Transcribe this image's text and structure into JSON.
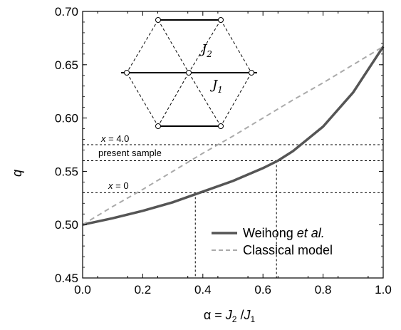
{
  "chart_data": {
    "type": "line",
    "xlabel": {
      "alpha": "α = ",
      "j2": "J",
      "j2_sub": "2",
      "sep": " /",
      "j1": "J",
      "j1_sub": "1"
    },
    "ylabel": "q",
    "xlim": [
      0.0,
      1.0
    ],
    "ylim": [
      0.45,
      0.7
    ],
    "xticks": [
      0.0,
      0.2,
      0.4,
      0.6,
      0.8,
      1.0
    ],
    "xtick_labels": [
      "0.0",
      "0.2",
      "0.4",
      "0.6",
      "0.8",
      "1.0"
    ],
    "yticks": [
      0.45,
      0.5,
      0.55,
      0.6,
      0.65,
      0.7
    ],
    "ytick_labels": [
      "0.45",
      "0.50",
      "0.55",
      "0.60",
      "0.65",
      "0.70"
    ],
    "legend_position": "lower-right",
    "series": [
      {
        "name": {
          "text": "Weihong ",
          "italic": "et al."
        },
        "style": "solid",
        "color": "#555555",
        "x": [
          0.0,
          0.1,
          0.2,
          0.3,
          0.38,
          0.5,
          0.6,
          0.65,
          0.7,
          0.8,
          0.9,
          1.0
        ],
        "y": [
          0.5,
          0.506,
          0.513,
          0.521,
          0.529,
          0.541,
          0.553,
          0.56,
          0.569,
          0.592,
          0.624,
          0.667
        ]
      },
      {
        "name": {
          "text": "Classical model",
          "italic": ""
        },
        "style": "dashed",
        "color": "#aaaaaa",
        "x": [
          0.0,
          0.1,
          0.2,
          0.3,
          0.4,
          0.5,
          0.6,
          0.7,
          0.8,
          0.9,
          1.0
        ],
        "y": [
          0.5,
          0.517,
          0.533,
          0.55,
          0.567,
          0.583,
          0.6,
          0.617,
          0.633,
          0.65,
          0.667
        ]
      }
    ],
    "reference_lines": [
      {
        "y": 0.575,
        "label_var": "x",
        "label_rest": " = 4.0"
      },
      {
        "y": 0.56,
        "label_var": "",
        "label_rest": "present sample"
      },
      {
        "y": 0.53,
        "label_var": "x",
        "label_rest": " = 0"
      }
    ],
    "vertical_reference_lines": [
      0.375,
      0.645
    ],
    "inset": {
      "label_j2": "J",
      "label_j2_sub": "2",
      "label_j1": "J",
      "label_j1_sub": "1"
    }
  }
}
